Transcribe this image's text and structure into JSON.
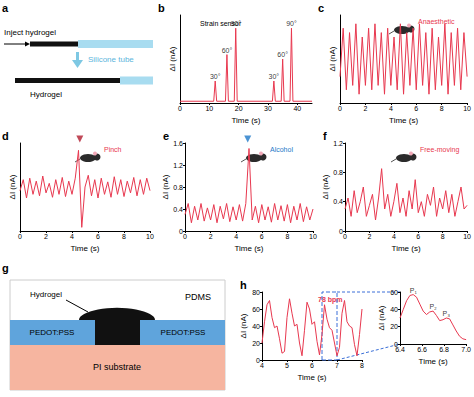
{
  "diagram_a": {
    "label": "a",
    "inject": "Inject hydrogel",
    "tube": "Silicone tube",
    "hydrogel": "Hydrogel"
  },
  "chart_data": [
    {
      "label": "b",
      "type": "line",
      "x_label": "Time (s)",
      "y_label": "ΔI (nA)",
      "color": "#e8384f",
      "x": [
        0,
        11.5,
        12,
        12.5,
        15.5,
        16,
        16.5,
        18.5,
        19,
        19.5,
        31.5,
        32,
        32.5,
        34.5,
        35,
        35.5,
        37.5,
        38,
        38.5,
        45
      ],
      "values": [
        0.02,
        0.02,
        0.25,
        0.02,
        0.02,
        0.55,
        0.02,
        0.02,
        0.85,
        0.02,
        0.02,
        0.25,
        0.02,
        0.02,
        0.5,
        0.02,
        0.02,
        0.85,
        0.02,
        0.02
      ],
      "xlim": [
        0,
        45
      ],
      "xticks": [
        0,
        10,
        20,
        30,
        40
      ],
      "ylim": [
        0,
        1
      ],
      "tick_labels": "x",
      "annotations": [
        {
          "text": "30°",
          "x": 12,
          "y": 0.25
        },
        {
          "text": "60°",
          "x": 16,
          "y": 0.55
        },
        {
          "text": "90°",
          "x": 19,
          "y": 0.85
        },
        {
          "text": "30°",
          "x": 32,
          "y": 0.25
        },
        {
          "text": "60°",
          "x": 35,
          "y": 0.5
        },
        {
          "text": "90°",
          "x": 38,
          "y": 0.85
        }
      ],
      "inset_text": "Strain sensor"
    },
    {
      "label": "c",
      "type": "line",
      "x_label": "Time (s)",
      "y_label": "ΔI (nA)",
      "color": "#e8384f",
      "x": [
        0,
        0.25,
        0.5,
        0.75,
        1,
        1.25,
        1.5,
        1.75,
        2,
        2.25,
        2.5,
        2.75,
        3,
        3.25,
        3.5,
        3.75,
        4,
        4.25,
        4.5,
        4.75,
        5,
        5.25,
        5.5,
        5.75,
        6,
        6.25,
        6.5,
        6.75,
        7,
        7.25,
        7.5,
        7.75,
        8,
        8.25,
        8.5,
        8.75,
        9,
        9.25,
        9.5,
        9.75,
        10
      ],
      "values": [
        0.3,
        0.85,
        0.15,
        0.8,
        0.2,
        0.9,
        0.1,
        0.75,
        0.2,
        0.85,
        0.15,
        0.9,
        0.2,
        0.8,
        0.1,
        0.85,
        0.2,
        0.75,
        0.15,
        0.9,
        0.1,
        0.8,
        0.2,
        0.85,
        0.15,
        0.9,
        0.2,
        0.8,
        0.1,
        0.85,
        0.15,
        0.75,
        0.2,
        0.9,
        0.1,
        0.8,
        0.2,
        0.85,
        0.15,
        0.8,
        0.3
      ],
      "xlim": [
        0,
        10
      ],
      "xticks": [
        0,
        2,
        4,
        6,
        8,
        10
      ],
      "ylim": [
        0,
        1
      ],
      "tick_labels": "x",
      "inset_text": "Anaesthetic"
    },
    {
      "label": "d",
      "type": "line",
      "x_label": "Time (s)",
      "y_label": "ΔI (nA)",
      "color": "#e8384f",
      "x": [
        0,
        0.25,
        0.5,
        0.75,
        1,
        1.25,
        1.5,
        1.75,
        2,
        2.25,
        2.5,
        2.75,
        3,
        3.25,
        3.5,
        3.75,
        4,
        4.25,
        4.5,
        4.75,
        5,
        5.25,
        5.5,
        5.75,
        6,
        6.25,
        6.5,
        6.75,
        7,
        7.25,
        7.5,
        7.75,
        8,
        8.25,
        8.5,
        8.75,
        9,
        9.25,
        9.5,
        9.75,
        10
      ],
      "values": [
        0.45,
        0.6,
        0.35,
        0.62,
        0.4,
        0.58,
        0.38,
        0.65,
        0.42,
        0.55,
        0.36,
        0.6,
        0.4,
        0.63,
        0.37,
        0.58,
        0.4,
        0.62,
        1.0,
        -0.05,
        0.5,
        0.66,
        0.38,
        0.6,
        0.35,
        0.62,
        0.4,
        0.57,
        0.36,
        0.64,
        0.4,
        0.6,
        0.37,
        0.58,
        0.42,
        0.63,
        0.38,
        0.6,
        0.4,
        0.62,
        0.45
      ],
      "xlim": [
        0,
        10
      ],
      "xticks": [
        0,
        2,
        4,
        6,
        8,
        10
      ],
      "ylim": [
        -0.1,
        1.1
      ],
      "tick_labels": "x",
      "event": {
        "x": 4.6,
        "color": "#b01c2e"
      },
      "inset_text": "Pinch"
    },
    {
      "label": "e",
      "type": "line",
      "x_label": "Time (s)",
      "y_label": "ΔI (nA)",
      "color": "#e8384f",
      "x": [
        0,
        0.25,
        0.5,
        0.75,
        1,
        1.25,
        1.5,
        1.75,
        2,
        2.25,
        2.5,
        2.75,
        3,
        3.25,
        3.5,
        3.75,
        4,
        4.25,
        4.5,
        4.75,
        5,
        5.25,
        5.5,
        5.75,
        6,
        6.25,
        6.5,
        6.75,
        7,
        7.25,
        7.5,
        7.75,
        8,
        8.25,
        8.5,
        8.75,
        9,
        9.25,
        9.5,
        9.75,
        10
      ],
      "values": [
        0.3,
        0.5,
        0.15,
        0.45,
        0.2,
        0.5,
        0.18,
        0.42,
        0.2,
        0.48,
        0.15,
        0.45,
        0.22,
        0.5,
        0.17,
        0.44,
        0.2,
        0.48,
        0.18,
        0.5,
        1.5,
        0.2,
        0.45,
        0.15,
        0.48,
        0.2,
        0.44,
        0.16,
        0.5,
        0.2,
        0.46,
        0.18,
        0.48,
        0.15,
        0.45,
        0.2,
        0.5,
        0.17,
        0.44,
        0.2,
        0.4
      ],
      "xlim": [
        0,
        10
      ],
      "xticks": [
        0,
        2,
        4,
        6,
        8,
        10
      ],
      "ylim": [
        0,
        1.6
      ],
      "yticks": [
        0,
        0.4,
        0.8,
        1.2,
        1.6
      ],
      "event": {
        "x": 4.9,
        "color": "#1e78c8"
      },
      "inset_text": "Alcohol"
    },
    {
      "label": "f",
      "type": "line",
      "x_label": "Time (s)",
      "y_label": "ΔI (nA)",
      "color": "#e8384f",
      "x": [
        0,
        0.25,
        0.5,
        0.75,
        1,
        1.25,
        1.5,
        1.75,
        2,
        2.25,
        2.5,
        2.75,
        3,
        3.25,
        3.5,
        3.75,
        4,
        4.25,
        4.5,
        4.75,
        5,
        5.25,
        5.5,
        5.75,
        6,
        6.25,
        6.5,
        6.75,
        7,
        7.25,
        7.5,
        7.75,
        8,
        8.25,
        8.5,
        8.75,
        9,
        9.25,
        9.5,
        9.75,
        10
      ],
      "values": [
        0.3,
        0.45,
        0.2,
        0.55,
        0.25,
        0.4,
        0.6,
        0.2,
        0.35,
        0.5,
        0.15,
        0.45,
        0.85,
        0.3,
        0.5,
        0.2,
        0.4,
        0.65,
        0.25,
        0.45,
        0.2,
        0.55,
        0.3,
        0.7,
        0.25,
        0.4,
        0.2,
        0.5,
        0.35,
        0.6,
        0.2,
        0.45,
        0.3,
        0.55,
        0.25,
        0.5,
        0.2,
        0.4,
        0.6,
        0.3,
        0.35
      ],
      "xlim": [
        0,
        10
      ],
      "xticks": [
        0,
        2,
        4,
        6,
        8,
        10
      ],
      "ylim": [
        0,
        1.2
      ],
      "yticks": [
        0,
        0.4,
        0.8,
        1.2
      ],
      "inset_text": "Free-moving"
    },
    {
      "label": "h",
      "type": "line",
      "x_label": "Time (s)",
      "y_label": "ΔI (nA)",
      "color": "#e8384f",
      "x": [
        4,
        4.1,
        4.2,
        4.3,
        4.4,
        4.5,
        4.6,
        4.7,
        4.8,
        4.9,
        5,
        5.1,
        5.2,
        5.3,
        5.4,
        5.5,
        5.6,
        5.7,
        5.8,
        5.9,
        6,
        6.1,
        6.2,
        6.3,
        6.4,
        6.5,
        6.6,
        6.7,
        6.8,
        6.9,
        7,
        7.1,
        7.2,
        7.3,
        7.4,
        7.5,
        7.6,
        7.7,
        7.8,
        7.9,
        8
      ],
      "values": [
        20,
        45,
        65,
        70,
        50,
        38,
        40,
        25,
        8,
        10,
        50,
        72,
        55,
        40,
        42,
        20,
        5,
        35,
        68,
        60,
        42,
        45,
        22,
        6,
        30,
        65,
        48,
        38,
        35,
        20,
        5,
        15,
        55,
        70,
        45,
        40,
        38,
        18,
        5,
        30,
        60
      ],
      "xlim": [
        4,
        8
      ],
      "xticks": [
        4,
        5,
        6,
        7,
        8
      ],
      "ylim": [
        0,
        80
      ],
      "yticks": [
        0,
        20,
        40,
        60,
        80
      ],
      "inset_text": "78 bpm",
      "inset": {
        "type": "line",
        "x_label": "Time (s)",
        "y_label": "ΔI (nA)",
        "color": "#e8384f",
        "x": [
          6.4,
          6.43,
          6.46,
          6.49,
          6.52,
          6.55,
          6.58,
          6.61,
          6.64,
          6.67,
          6.7,
          6.73,
          6.76,
          6.79,
          6.82,
          6.85,
          6.88,
          6.91,
          6.94,
          6.97,
          7
        ],
        "values": [
          30,
          40,
          50,
          56,
          57,
          54,
          46,
          38,
          34,
          37,
          38,
          33,
          27,
          28,
          30,
          29,
          22,
          15,
          9,
          6,
          5
        ],
        "xlim": [
          6.4,
          7
        ],
        "xticks": [
          6.4,
          6.6,
          6.8,
          {
            "value": 7,
            "label": "7.0"
          }
        ],
        "ylim": [
          0,
          60
        ],
        "yticks": [
          0,
          20,
          40,
          60
        ],
        "annotations": [
          {
            "text": "P₁",
            "x": 6.52,
            "y": 57
          },
          {
            "text": "P₂",
            "x": 6.7,
            "y": 38
          },
          {
            "text": "P₃",
            "x": 6.82,
            "y": 30
          }
        ]
      }
    }
  ],
  "diagram_g": {
    "label": "g",
    "hydrogel": "Hydrogel",
    "pdms": "PDMS",
    "pedot_left": "PEDOT:PSS",
    "pedot_right": "PEDOT:PSS",
    "substrate": "PI substrate"
  }
}
